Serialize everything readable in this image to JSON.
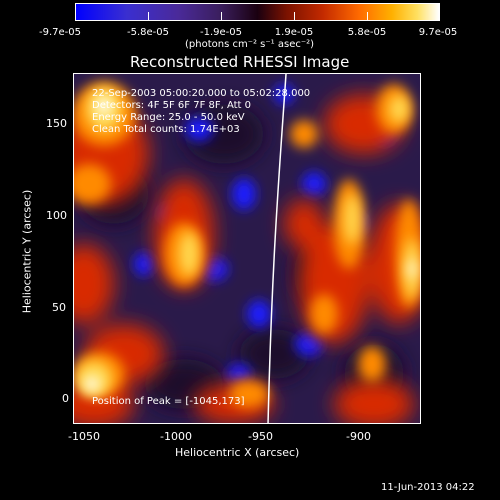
{
  "colorbar": {
    "tick_labels": [
      "-9.7e-05",
      "-5.8e-05",
      "-1.9e-05",
      "1.9e-05",
      "5.8e-05",
      "9.7e-05"
    ],
    "units": "(photons cm⁻² s⁻¹ asec⁻²)"
  },
  "title": "Reconstructed RHESSI Image",
  "overlay": {
    "time_range": "22-Sep-2003 05:00:20.000 to 05:02:28.000",
    "detectors": "Detectors: 4F 5F 6F 7F 8F, Att 0",
    "energy": "Energy Range: 25.0 - 50.0 keV",
    "algorithm": "Clean    Total counts: 1.74E+03",
    "peak": "Position of Peak = [-1045,173]"
  },
  "axes": {
    "xlabel": "Heliocentric X (arcsec)",
    "ylabel": "Heliocentric Y (arcsec)",
    "x_ticks": [
      "-1050",
      "-1000",
      "-950",
      "-900"
    ],
    "y_ticks": [
      "0",
      "50",
      "100",
      "150"
    ],
    "x_range": [
      -1062,
      -863
    ],
    "y_range": [
      -15,
      185
    ]
  },
  "footer": {
    "timestamp": "11-Jun-2013 04:22"
  },
  "colors": {
    "blue": "#1a1aff",
    "violet": "#4a2a9a",
    "dark": "#1a0a2a",
    "red": "#d82a00",
    "orange": "#ff8a00",
    "yellow": "#ffd850",
    "white": "#fffae0",
    "limb": "#ffffff"
  }
}
